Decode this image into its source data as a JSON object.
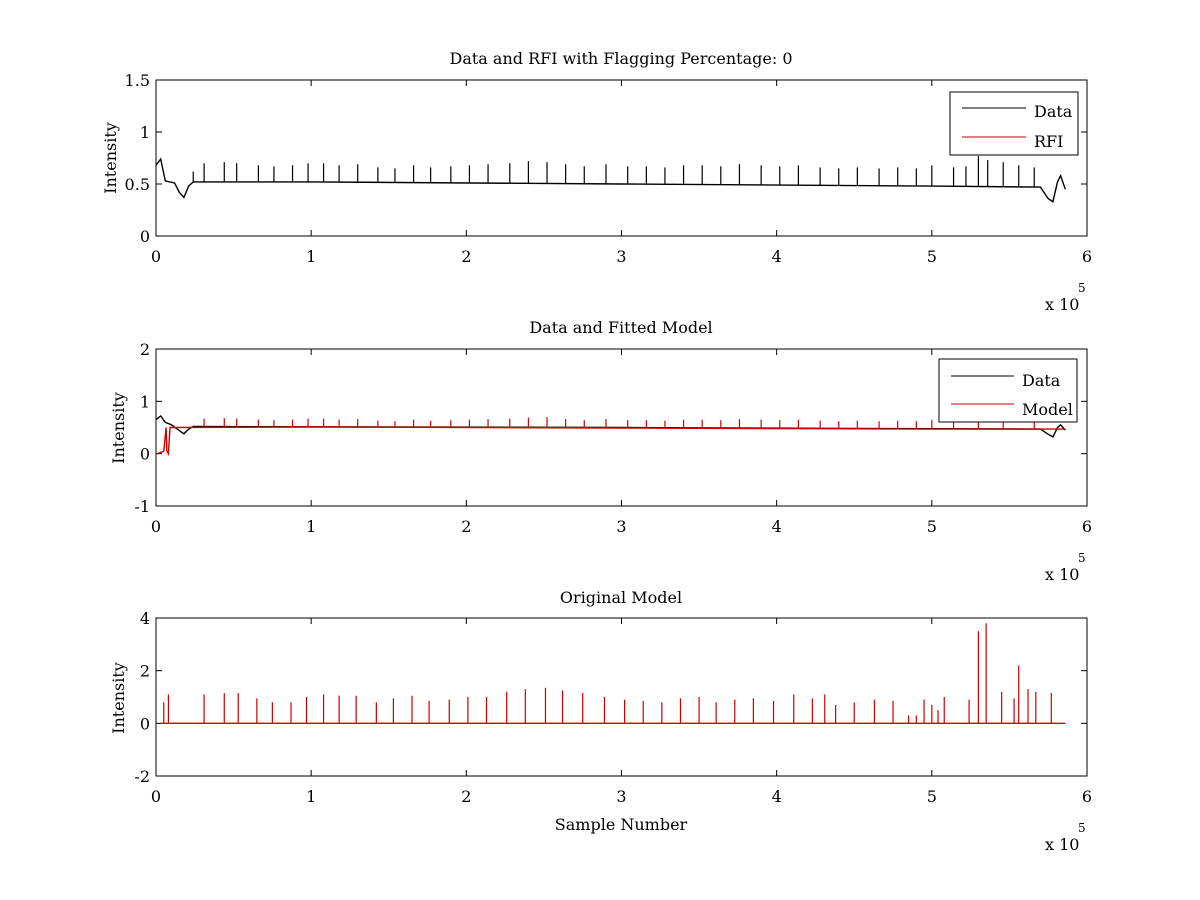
{
  "figure": {
    "background": "#ffffff",
    "axis_color": "#000000"
  },
  "chart_data": [
    {
      "type": "line",
      "title": "Data and RFI with Flagging Percentage: 0",
      "xlabel": "",
      "ylabel": "Intensity",
      "xlim": [
        0,
        600000
      ],
      "ylim": [
        0,
        1.5
      ],
      "xticks": [
        0,
        1,
        2,
        3,
        4,
        5,
        6
      ],
      "yticks": [
        "0",
        "0.5",
        "1",
        "1.5"
      ],
      "x_multiplier_label": "x 10",
      "x_multiplier_exp": "5",
      "legend": {
        "position": "top-right",
        "entries": [
          {
            "name": "Data",
            "color": "#000000"
          },
          {
            "name": "RFI",
            "color": "#cc0000"
          }
        ]
      },
      "series": [
        {
          "name": "Data",
          "color": "#000000",
          "baseline": [
            [
              0,
              0.68
            ],
            [
              3000,
              0.74
            ],
            [
              6000,
              0.53
            ],
            [
              12000,
              0.51
            ],
            [
              15000,
              0.42
            ],
            [
              18000,
              0.37
            ],
            [
              21000,
              0.48
            ],
            [
              24000,
              0.52
            ],
            [
              100000,
              0.52
            ],
            [
              300000,
              0.5
            ],
            [
              500000,
              0.48
            ],
            [
              570000,
              0.47
            ],
            [
              575000,
              0.36
            ],
            [
              578000,
              0.33
            ],
            [
              581000,
              0.52
            ],
            [
              583000,
              0.58
            ],
            [
              586000,
              0.45
            ]
          ],
          "spikes": [
            [
              24000,
              0.62
            ],
            [
              31000,
              0.7
            ],
            [
              44000,
              0.71
            ],
            [
              52000,
              0.7
            ],
            [
              66000,
              0.68
            ],
            [
              76000,
              0.67
            ],
            [
              88000,
              0.68
            ],
            [
              98000,
              0.7
            ],
            [
              108000,
              0.7
            ],
            [
              118000,
              0.68
            ],
            [
              130000,
              0.69
            ],
            [
              143000,
              0.66
            ],
            [
              154000,
              0.65
            ],
            [
              166000,
              0.68
            ],
            [
              177000,
              0.66
            ],
            [
              190000,
              0.67
            ],
            [
              202000,
              0.68
            ],
            [
              214000,
              0.69
            ],
            [
              228000,
              0.7
            ],
            [
              240000,
              0.72
            ],
            [
              252000,
              0.71
            ],
            [
              264000,
              0.69
            ],
            [
              276000,
              0.67
            ],
            [
              290000,
              0.69
            ],
            [
              304000,
              0.67
            ],
            [
              316000,
              0.67
            ],
            [
              328000,
              0.66
            ],
            [
              340000,
              0.68
            ],
            [
              352000,
              0.68
            ],
            [
              364000,
              0.67
            ],
            [
              376000,
              0.69
            ],
            [
              390000,
              0.68
            ],
            [
              402000,
              0.67
            ],
            [
              414000,
              0.68
            ],
            [
              428000,
              0.66
            ],
            [
              440000,
              0.65
            ],
            [
              452000,
              0.66
            ],
            [
              466000,
              0.65
            ],
            [
              478000,
              0.66
            ],
            [
              490000,
              0.65
            ],
            [
              500000,
              0.68
            ],
            [
              514000,
              0.66
            ],
            [
              522000,
              0.67
            ],
            [
              530000,
              0.77
            ],
            [
              536000,
              0.73
            ],
            [
              546000,
              0.71
            ],
            [
              556000,
              0.68
            ],
            [
              566000,
              0.66
            ]
          ]
        },
        {
          "name": "RFI",
          "color": "#cc0000",
          "baseline": [],
          "spikes": []
        }
      ]
    },
    {
      "type": "line",
      "title": "Data and Fitted Model",
      "xlabel": "",
      "ylabel": "Intensity",
      "xlim": [
        0,
        600000
      ],
      "ylim": [
        -1,
        2
      ],
      "xticks": [
        0,
        1,
        2,
        3,
        4,
        5,
        6
      ],
      "yticks": [
        "-1",
        "0",
        "1",
        "2"
      ],
      "x_multiplier_label": "x 10",
      "x_multiplier_exp": "5",
      "legend": {
        "position": "top-right",
        "entries": [
          {
            "name": "Data",
            "color": "#000000"
          },
          {
            "name": "Model",
            "color": "#cc0000"
          }
        ]
      },
      "series": [
        {
          "name": "Data",
          "color": "#000000",
          "baseline": [
            [
              0,
              0.65
            ],
            [
              3000,
              0.72
            ],
            [
              6000,
              0.6
            ],
            [
              10000,
              0.55
            ],
            [
              15000,
              0.44
            ],
            [
              18000,
              0.38
            ],
            [
              21000,
              0.47
            ],
            [
              24000,
              0.52
            ],
            [
              300000,
              0.5
            ],
            [
              570000,
              0.47
            ],
            [
              575000,
              0.37
            ],
            [
              578000,
              0.32
            ],
            [
              581000,
              0.5
            ],
            [
              583000,
              0.55
            ],
            [
              586000,
              0.45
            ]
          ],
          "spikes": []
        },
        {
          "name": "Model",
          "color": "#cc0000",
          "baseline": [
            [
              1000,
              0.0
            ],
            [
              5000,
              0.05
            ],
            [
              6500,
              0.5
            ],
            [
              7000,
              0.05
            ],
            [
              8000,
              0.0
            ],
            [
              9000,
              0.5
            ],
            [
              100000,
              0.51
            ],
            [
              300000,
              0.49
            ],
            [
              500000,
              0.47
            ],
            [
              586000,
              0.47
            ]
          ],
          "spikes": [
            [
              31000,
              0.67
            ],
            [
              44000,
              0.68
            ],
            [
              52000,
              0.67
            ],
            [
              66000,
              0.65
            ],
            [
              76000,
              0.64
            ],
            [
              88000,
              0.65
            ],
            [
              98000,
              0.67
            ],
            [
              108000,
              0.67
            ],
            [
              118000,
              0.65
            ],
            [
              130000,
              0.66
            ],
            [
              143000,
              0.63
            ],
            [
              154000,
              0.62
            ],
            [
              166000,
              0.65
            ],
            [
              177000,
              0.63
            ],
            [
              190000,
              0.64
            ],
            [
              202000,
              0.65
            ],
            [
              214000,
              0.66
            ],
            [
              228000,
              0.67
            ],
            [
              240000,
              0.69
            ],
            [
              252000,
              0.7
            ],
            [
              264000,
              0.66
            ],
            [
              276000,
              0.64
            ],
            [
              290000,
              0.66
            ],
            [
              304000,
              0.64
            ],
            [
              316000,
              0.64
            ],
            [
              328000,
              0.63
            ],
            [
              340000,
              0.65
            ],
            [
              352000,
              0.65
            ],
            [
              364000,
              0.64
            ],
            [
              376000,
              0.66
            ],
            [
              390000,
              0.65
            ],
            [
              402000,
              0.64
            ],
            [
              414000,
              0.65
            ],
            [
              428000,
              0.63
            ],
            [
              440000,
              0.62
            ],
            [
              452000,
              0.63
            ],
            [
              466000,
              0.62
            ],
            [
              478000,
              0.63
            ],
            [
              490000,
              0.62
            ],
            [
              500000,
              0.65
            ],
            [
              514000,
              0.63
            ],
            [
              530000,
              0.64
            ],
            [
              546000,
              0.62
            ],
            [
              566000,
              0.6
            ]
          ]
        }
      ]
    },
    {
      "type": "line",
      "title": "Original Model",
      "xlabel": "Sample Number",
      "ylabel": "Intensity",
      "xlim": [
        0,
        600000
      ],
      "ylim": [
        -2,
        4
      ],
      "xticks": [
        0,
        1,
        2,
        3,
        4,
        5,
        6
      ],
      "yticks": [
        "-2",
        "0",
        "2",
        "4"
      ],
      "x_multiplier_label": "x 10",
      "x_multiplier_exp": "5",
      "legend": null,
      "series": [
        {
          "name": "",
          "color": "#cc0000",
          "baseline": [
            [
              3000,
              0.0
            ],
            [
              586000,
              0.0
            ]
          ],
          "spikes": [
            [
              5000,
              0.8
            ],
            [
              8000,
              1.1
            ],
            [
              31000,
              1.1
            ],
            [
              44000,
              1.15
            ],
            [
              53000,
              1.15
            ],
            [
              65000,
              0.95
            ],
            [
              75000,
              0.8
            ],
            [
              87000,
              0.8
            ],
            [
              97000,
              1.0
            ],
            [
              108000,
              1.1
            ],
            [
              118000,
              1.05
            ],
            [
              129000,
              1.05
            ],
            [
              142000,
              0.8
            ],
            [
              153000,
              0.95
            ],
            [
              165000,
              1.05
            ],
            [
              176000,
              0.85
            ],
            [
              189000,
              0.9
            ],
            [
              201000,
              1.0
            ],
            [
              213000,
              1.0
            ],
            [
              226000,
              1.2
            ],
            [
              238000,
              1.3
            ],
            [
              251000,
              1.35
            ],
            [
              262000,
              1.25
            ],
            [
              275000,
              1.15
            ],
            [
              289000,
              1.0
            ],
            [
              302000,
              0.9
            ],
            [
              314000,
              0.85
            ],
            [
              326000,
              0.8
            ],
            [
              338000,
              0.95
            ],
            [
              350000,
              1.0
            ],
            [
              361000,
              0.8
            ],
            [
              373000,
              0.9
            ],
            [
              385000,
              0.95
            ],
            [
              398000,
              0.85
            ],
            [
              411000,
              1.1
            ],
            [
              423000,
              0.95
            ],
            [
              431000,
              1.1
            ],
            [
              438000,
              0.7
            ],
            [
              450000,
              0.8
            ],
            [
              463000,
              0.9
            ],
            [
              475000,
              0.85
            ],
            [
              485000,
              0.3
            ],
            [
              490000,
              0.3
            ],
            [
              495000,
              0.9
            ],
            [
              500000,
              0.7
            ],
            [
              504000,
              0.5
            ],
            [
              508000,
              1.0
            ],
            [
              524000,
              0.9
            ],
            [
              530000,
              3.5
            ],
            [
              535000,
              3.8
            ],
            [
              545000,
              1.2
            ],
            [
              553000,
              0.95
            ],
            [
              556000,
              2.2
            ],
            [
              562000,
              1.3
            ],
            [
              567000,
              1.2
            ],
            [
              577000,
              1.15
            ]
          ]
        }
      ]
    }
  ]
}
